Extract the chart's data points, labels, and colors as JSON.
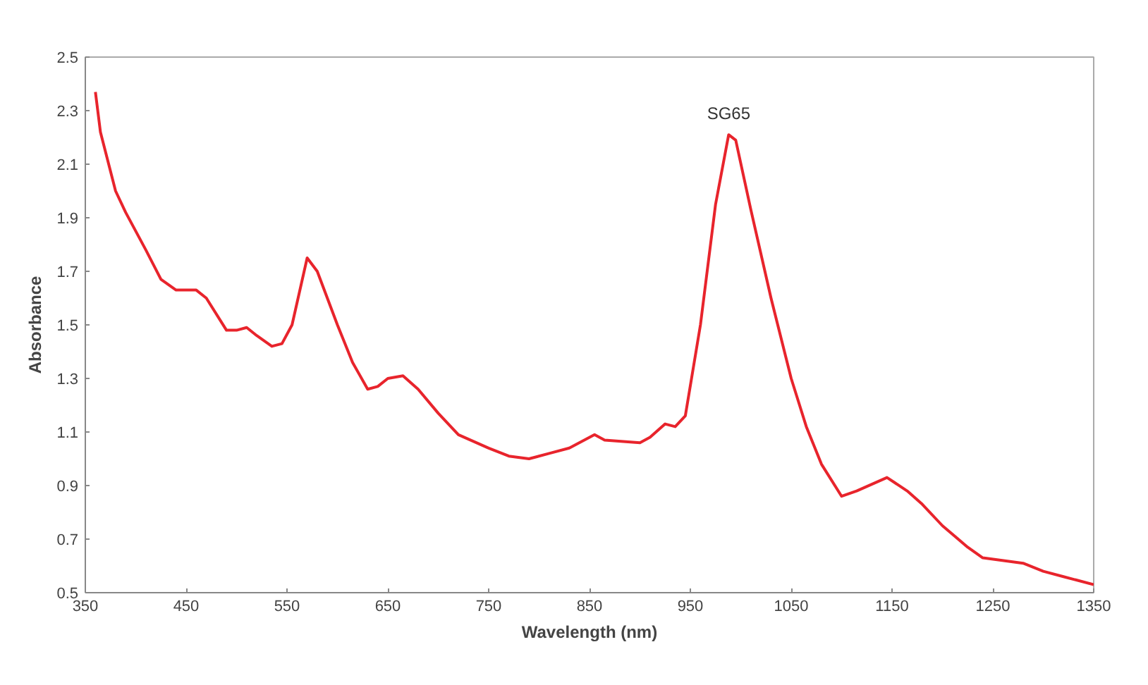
{
  "chart_data": {
    "type": "line",
    "xlabel": "Wavelength (nm)",
    "ylabel": "Absorbance",
    "x": [
      360,
      365,
      380,
      390,
      410,
      425,
      440,
      460,
      470,
      490,
      500,
      510,
      520,
      535,
      545,
      555,
      570,
      580,
      600,
      615,
      630,
      640,
      650,
      665,
      680,
      700,
      720,
      750,
      770,
      790,
      810,
      830,
      855,
      865,
      900,
      910,
      925,
      935,
      945,
      960,
      975,
      988,
      995,
      1010,
      1030,
      1050,
      1065,
      1080,
      1100,
      1115,
      1145,
      1165,
      1180,
      1200,
      1225,
      1240,
      1280,
      1300,
      1320,
      1350
    ],
    "series": [
      {
        "color": "#e8242c",
        "values": [
          2.37,
          2.22,
          2.0,
          1.92,
          1.78,
          1.67,
          1.63,
          1.63,
          1.6,
          1.48,
          1.48,
          1.49,
          1.46,
          1.42,
          1.43,
          1.5,
          1.75,
          1.7,
          1.5,
          1.36,
          1.26,
          1.27,
          1.3,
          1.31,
          1.26,
          1.17,
          1.09,
          1.04,
          1.01,
          1.0,
          1.02,
          1.04,
          1.09,
          1.07,
          1.06,
          1.08,
          1.13,
          1.12,
          1.16,
          1.5,
          1.95,
          2.21,
          2.19,
          1.93,
          1.6,
          1.3,
          1.12,
          0.98,
          0.86,
          0.88,
          0.93,
          0.88,
          0.83,
          0.75,
          0.67,
          0.63,
          0.61,
          0.58,
          0.56,
          0.53
        ]
      }
    ],
    "xlim": [
      350,
      1350
    ],
    "ylim": [
      0.5,
      2.5
    ],
    "xticks": [
      350,
      450,
      550,
      650,
      750,
      850,
      950,
      1050,
      1150,
      1250,
      1350
    ],
    "yticks": [
      0.5,
      0.7,
      0.9,
      1.1,
      1.3,
      1.5,
      1.7,
      1.9,
      2.1,
      2.3,
      2.5
    ],
    "annotations": [
      {
        "text": "SG65",
        "x": 988,
        "y": 2.21
      }
    ],
    "grid": false,
    "marker": "none",
    "line_style": "solid"
  }
}
